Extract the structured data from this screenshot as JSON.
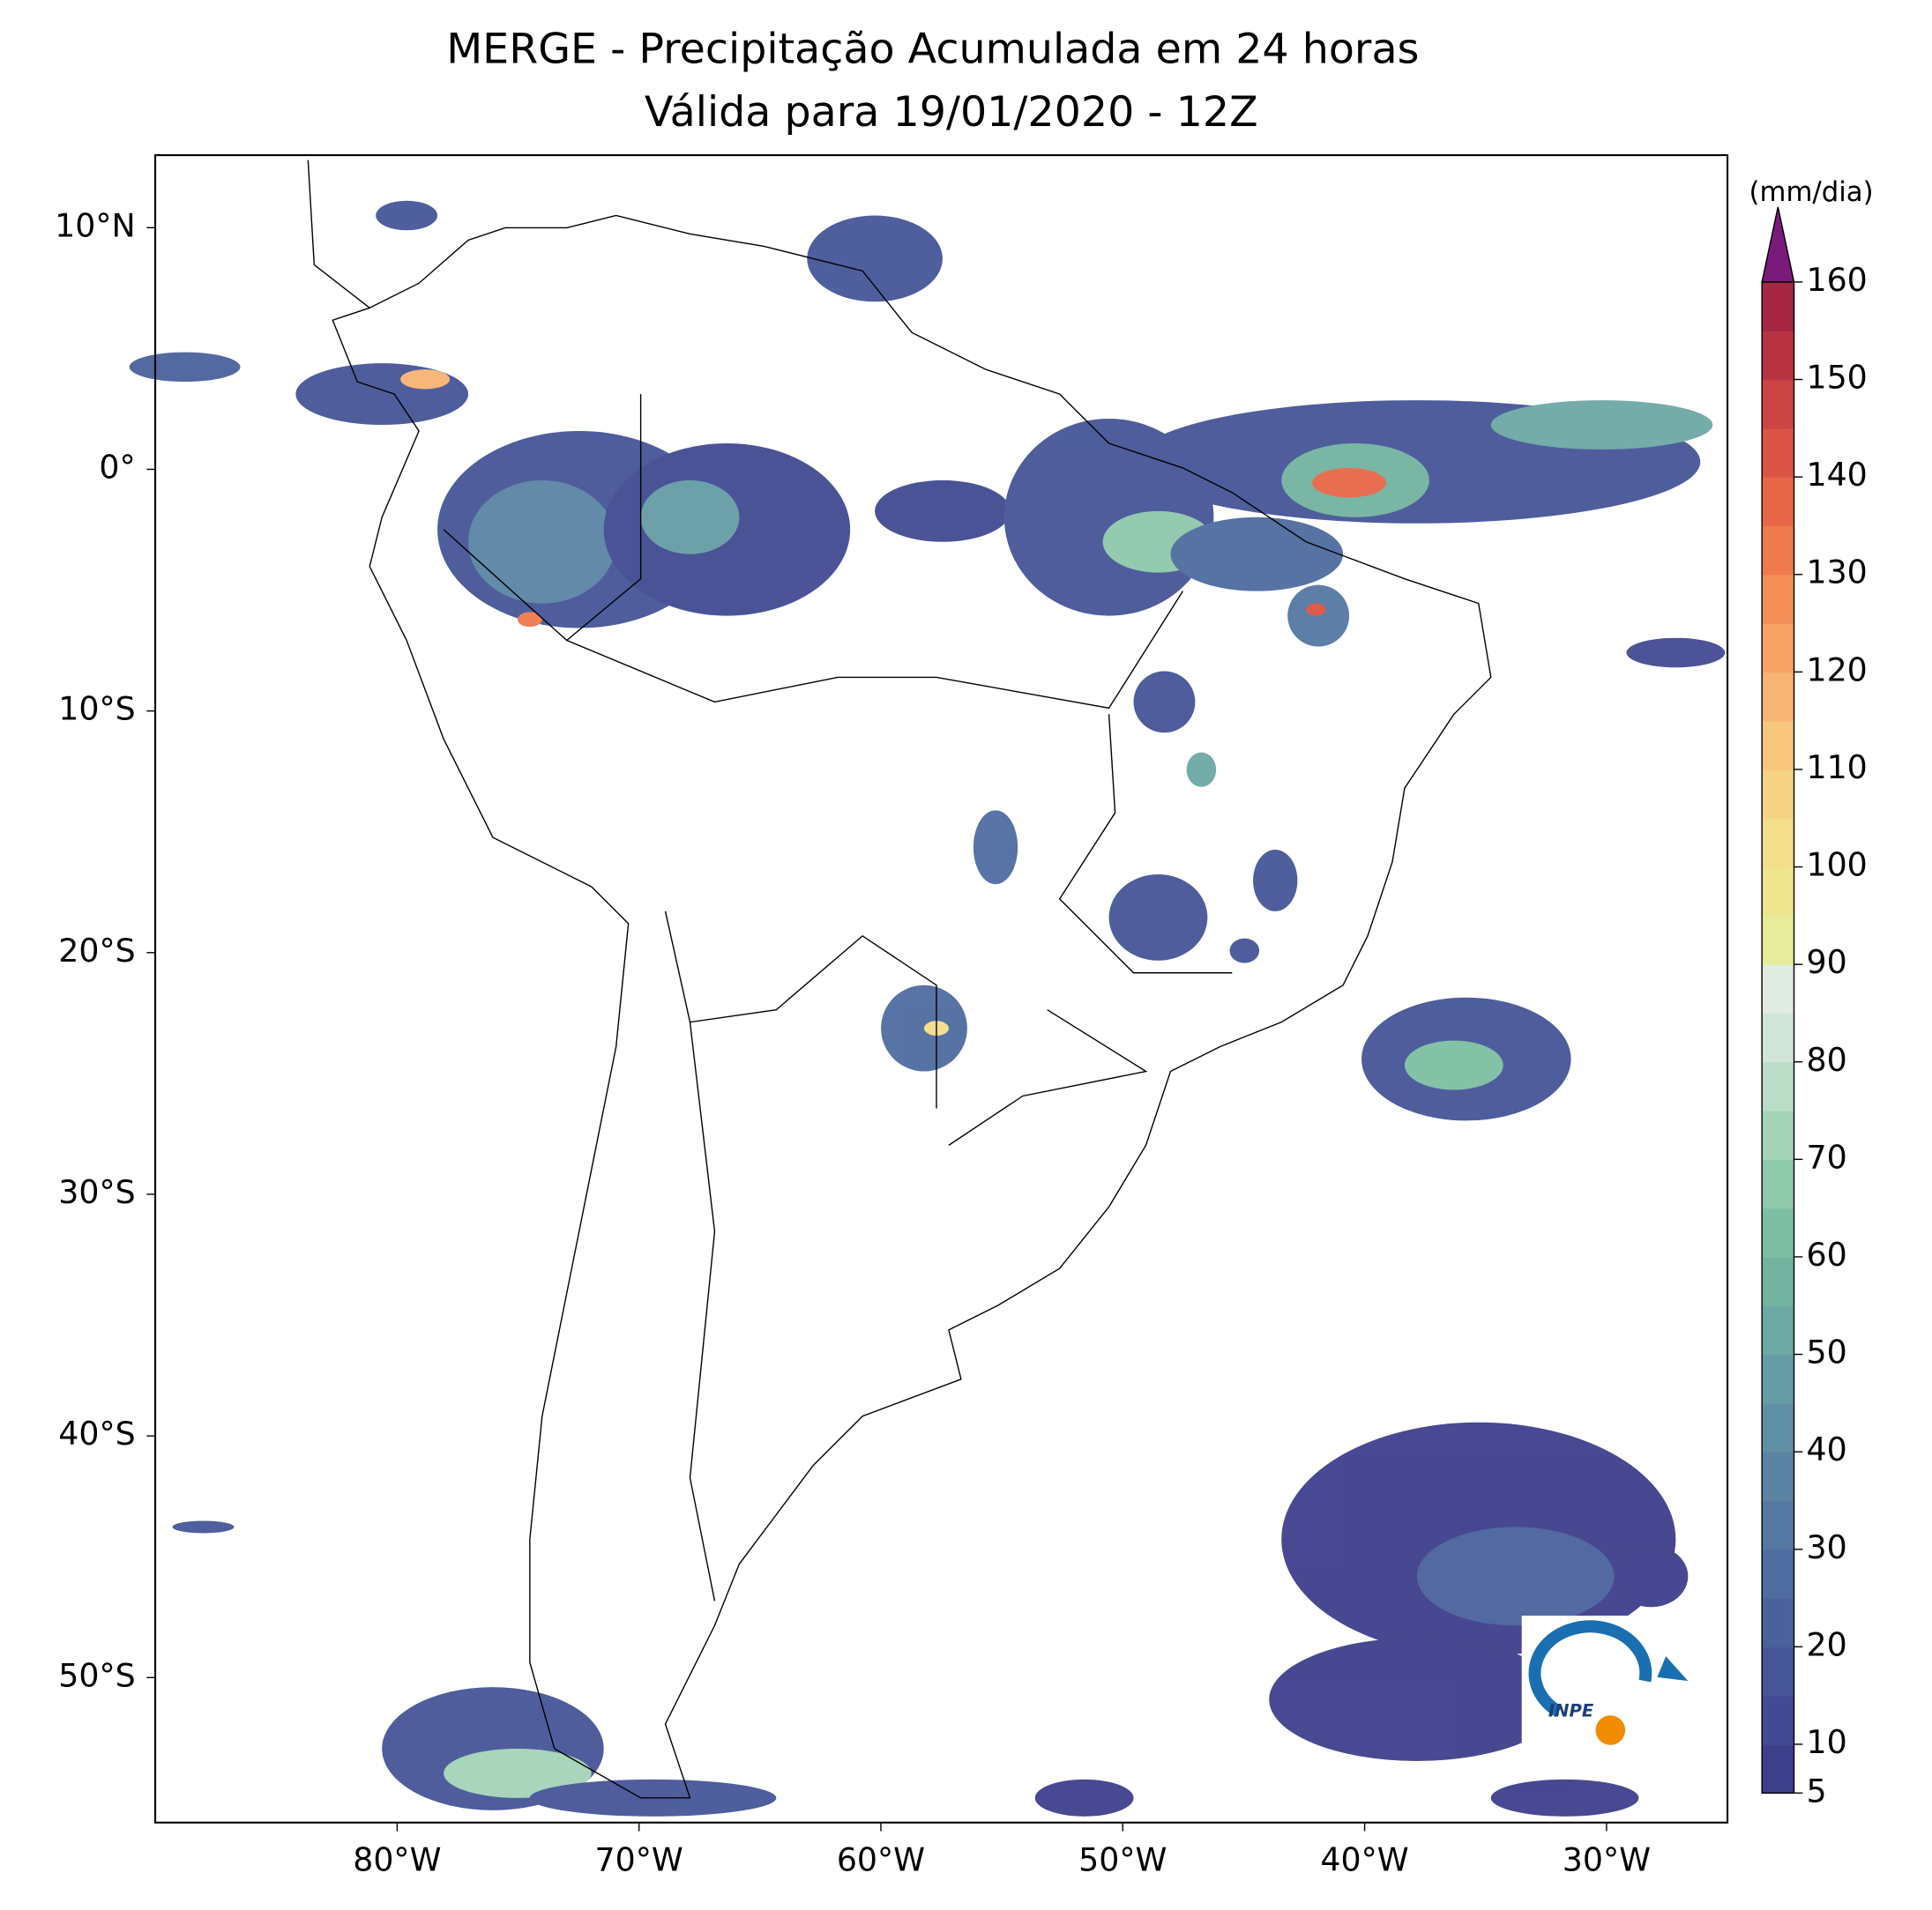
{
  "chart_data": {
    "type": "map",
    "title": [
      "MERGE - Precipitação Acumulada em 24 horas",
      "Válida para 19/01/2020 - 12Z"
    ],
    "xlim": [
      -90,
      -25
    ],
    "ylim": [
      -56,
      13
    ],
    "xticks": [
      {
        "value": -80,
        "label": "80°W"
      },
      {
        "value": -70,
        "label": "70°W"
      },
      {
        "value": -60,
        "label": "60°W"
      },
      {
        "value": -50,
        "label": "50°W"
      },
      {
        "value": -40,
        "label": "40°W"
      },
      {
        "value": -30,
        "label": "30°W"
      }
    ],
    "yticks": [
      {
        "value": 10,
        "label": "10°N"
      },
      {
        "value": 0,
        "label": "0°"
      },
      {
        "value": -10,
        "label": "10°S"
      },
      {
        "value": -20,
        "label": "20°S"
      },
      {
        "value": -30,
        "label": "30°S"
      },
      {
        "value": -40,
        "label": "40°S"
      },
      {
        "value": -50,
        "label": "50°S"
      }
    ],
    "colorbar": {
      "label": "(mm/dia)",
      "clim": [
        5,
        160
      ],
      "ticks": [
        5,
        10,
        20,
        30,
        40,
        50,
        60,
        70,
        80,
        90,
        100,
        110,
        120,
        130,
        140,
        150,
        160
      ],
      "colors": [
        "#3e3f8c",
        "#424a92",
        "#465598",
        "#4a619d",
        "#4f6ca0",
        "#5578a2",
        "#5b84a4",
        "#6190a6",
        "#669ca6",
        "#6ca8a4",
        "#72b4a0",
        "#7dbfa2",
        "#8fc9ac",
        "#a4d3b8",
        "#bbdcc6",
        "#d0e5d6",
        "#e0ecdf",
        "#e6ec9a",
        "#ede68e",
        "#f3de89",
        "#f7d385",
        "#f8c57c",
        "#f8b472",
        "#f7a265",
        "#f48f58",
        "#ef7b4e",
        "#e86748",
        "#dc5445",
        "#cc4443",
        "#b83342",
        "#a52743"
      ],
      "extend_color": "#7a1a7a"
    },
    "logo": "INPE"
  }
}
